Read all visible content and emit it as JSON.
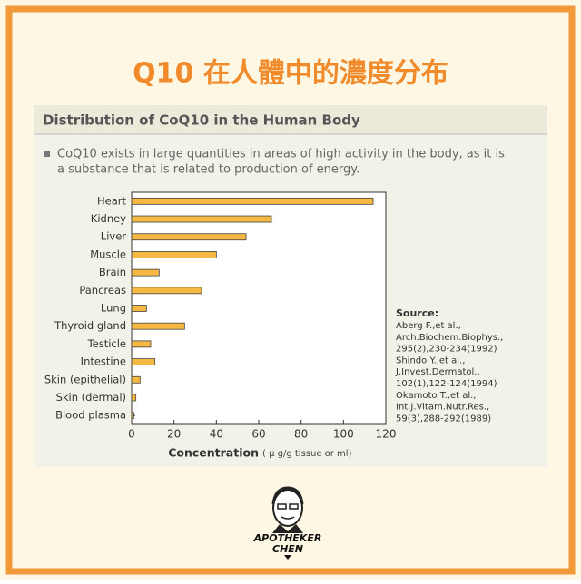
{
  "header": {
    "title": "Q10 在人體中的濃度分布"
  },
  "chart_data": {
    "type": "bar",
    "orientation": "horizontal",
    "title": "Distribution of CoQ10 in the Human Body",
    "subtitle": [
      "CoQ10 exists in large quantities in areas of high activity in the body, as it is",
      "a substance that is related to production of energy."
    ],
    "categories": [
      "Heart",
      "Kidney",
      "Liver",
      "Muscle",
      "Brain",
      "Pancreas",
      "Lung",
      "Thyroid gland",
      "Testicle",
      "Intestine",
      "Skin (epithelial)",
      "Skin (dermal)",
      "Blood plasma"
    ],
    "values": [
      114,
      66,
      54,
      40,
      13,
      33,
      7,
      25,
      9,
      11,
      4,
      2,
      1
    ],
    "color": "#f5b942",
    "xlim": [
      0,
      120
    ],
    "xticks": [
      0,
      20,
      40,
      60,
      80,
      100,
      120
    ],
    "xlabel": "Concentration",
    "xlabel_unit": "( μ g/g tissue or ml)",
    "grid": false,
    "source": {
      "title": "Source:",
      "lines": [
        "Aberg F.,et al.,",
        "Arch.Biochem.Biophys.,",
        "295(2),230-234(1992)",
        "Shindo Y.,et al.,",
        "J.Invest.Dermatol.,",
        "102(1),122-124(1994)",
        "Okamoto T.,et al.,",
        "Int.J.Vitam.Nutr.Res.,",
        "59(3),288-292(1989)"
      ]
    }
  },
  "footer": {
    "logo_lines": [
      "APOTHEKER",
      "CHEN"
    ]
  }
}
